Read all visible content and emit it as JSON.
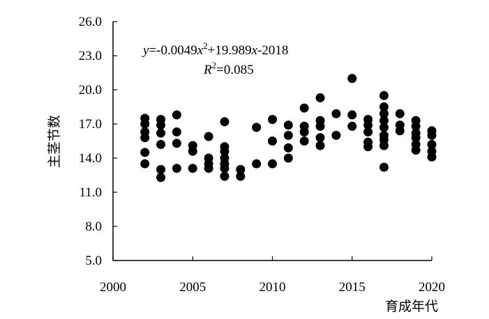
{
  "chart_data": {
    "type": "scatter",
    "xlabel": "育成年代",
    "ylabel": "主茎节数",
    "xlim": [
      2000,
      2020
    ],
    "ylim": [
      5.0,
      26.0
    ],
    "x_ticks": [
      "2000",
      "2005",
      "2010",
      "2015",
      "2020"
    ],
    "y_ticks": [
      "5.0",
      "8.0",
      "11.0",
      "14.0",
      "17.0",
      "20.0",
      "23.0",
      "26.0"
    ],
    "grid": false,
    "legend": "none",
    "marker_color": "#000000",
    "trendline": {
      "type": "polynomial",
      "a": -0.0049,
      "b": 19.989,
      "c": -2018,
      "equation": {
        "y": "y",
        "mid1": "=-0.0049",
        "x1": "x",
        "exp": "2",
        "mid2": "+19.989",
        "x2": "x",
        "tail": "-2018"
      },
      "r2": {
        "r": "R",
        "exp": "2",
        "tail": "=0.085"
      }
    },
    "points": [
      {
        "x": 2002,
        "y": 17.5
      },
      {
        "x": 2002,
        "y": 17.0
      },
      {
        "x": 2002,
        "y": 16.3
      },
      {
        "x": 2002,
        "y": 15.8
      },
      {
        "x": 2002,
        "y": 14.5
      },
      {
        "x": 2002,
        "y": 13.5
      },
      {
        "x": 2003,
        "y": 17.4
      },
      {
        "x": 2003,
        "y": 16.9
      },
      {
        "x": 2003,
        "y": 16.2
      },
      {
        "x": 2003,
        "y": 15.2
      },
      {
        "x": 2003,
        "y": 13.0
      },
      {
        "x": 2003,
        "y": 12.3
      },
      {
        "x": 2004,
        "y": 17.8
      },
      {
        "x": 2004,
        "y": 16.3
      },
      {
        "x": 2004,
        "y": 15.3
      },
      {
        "x": 2004,
        "y": 13.1
      },
      {
        "x": 2005,
        "y": 15.1
      },
      {
        "x": 2005,
        "y": 14.6
      },
      {
        "x": 2005,
        "y": 13.1
      },
      {
        "x": 2006,
        "y": 15.9
      },
      {
        "x": 2006,
        "y": 14.0
      },
      {
        "x": 2006,
        "y": 13.5
      },
      {
        "x": 2006,
        "y": 13.1
      },
      {
        "x": 2007,
        "y": 17.2
      },
      {
        "x": 2007,
        "y": 15.0
      },
      {
        "x": 2007,
        "y": 14.6
      },
      {
        "x": 2007,
        "y": 14.0
      },
      {
        "x": 2007,
        "y": 13.5
      },
      {
        "x": 2007,
        "y": 13.1
      },
      {
        "x": 2007,
        "y": 12.4
      },
      {
        "x": 2008,
        "y": 13.0
      },
      {
        "x": 2008,
        "y": 12.4
      },
      {
        "x": 2009,
        "y": 16.7
      },
      {
        "x": 2009,
        "y": 13.5
      },
      {
        "x": 2010,
        "y": 17.4
      },
      {
        "x": 2010,
        "y": 15.5
      },
      {
        "x": 2010,
        "y": 13.5
      },
      {
        "x": 2011,
        "y": 16.9
      },
      {
        "x": 2011,
        "y": 16.0
      },
      {
        "x": 2011,
        "y": 14.9
      },
      {
        "x": 2011,
        "y": 14.0
      },
      {
        "x": 2012,
        "y": 18.4
      },
      {
        "x": 2012,
        "y": 16.8
      },
      {
        "x": 2012,
        "y": 16.3
      },
      {
        "x": 2012,
        "y": 15.5
      },
      {
        "x": 2013,
        "y": 19.3
      },
      {
        "x": 2013,
        "y": 17.3
      },
      {
        "x": 2013,
        "y": 16.8
      },
      {
        "x": 2013,
        "y": 15.8
      },
      {
        "x": 2013,
        "y": 15.1
      },
      {
        "x": 2014,
        "y": 17.9
      },
      {
        "x": 2014,
        "y": 16.0
      },
      {
        "x": 2015,
        "y": 21.0
      },
      {
        "x": 2015,
        "y": 17.8
      },
      {
        "x": 2015,
        "y": 16.8
      },
      {
        "x": 2016,
        "y": 17.4
      },
      {
        "x": 2016,
        "y": 16.9
      },
      {
        "x": 2016,
        "y": 16.3
      },
      {
        "x": 2016,
        "y": 15.4
      },
      {
        "x": 2016,
        "y": 15.0
      },
      {
        "x": 2017,
        "y": 19.5
      },
      {
        "x": 2017,
        "y": 18.5
      },
      {
        "x": 2017,
        "y": 17.9
      },
      {
        "x": 2017,
        "y": 17.3
      },
      {
        "x": 2017,
        "y": 16.7
      },
      {
        "x": 2017,
        "y": 16.0
      },
      {
        "x": 2017,
        "y": 15.6
      },
      {
        "x": 2017,
        "y": 15.1
      },
      {
        "x": 2017,
        "y": 13.2
      },
      {
        "x": 2018,
        "y": 17.9
      },
      {
        "x": 2018,
        "y": 16.9
      },
      {
        "x": 2018,
        "y": 16.4
      },
      {
        "x": 2019,
        "y": 17.3
      },
      {
        "x": 2019,
        "y": 16.8
      },
      {
        "x": 2019,
        "y": 16.2
      },
      {
        "x": 2019,
        "y": 15.8
      },
      {
        "x": 2019,
        "y": 15.2
      },
      {
        "x": 2019,
        "y": 14.7
      },
      {
        "x": 2020,
        "y": 16.4
      },
      {
        "x": 2020,
        "y": 16.0
      },
      {
        "x": 2020,
        "y": 15.2
      },
      {
        "x": 2020,
        "y": 14.6
      },
      {
        "x": 2020,
        "y": 14.1
      }
    ]
  }
}
